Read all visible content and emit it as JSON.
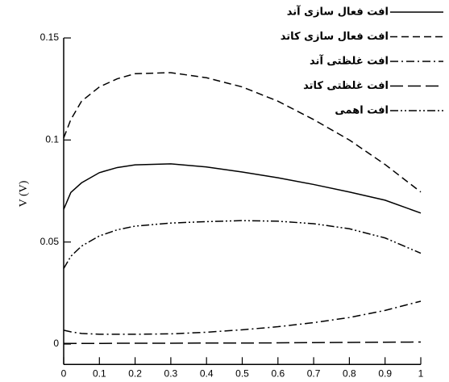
{
  "chart_data": {
    "type": "line",
    "x": [
      0,
      0.02,
      0.05,
      0.1,
      0.15,
      0.2,
      0.3,
      0.4,
      0.5,
      0.6,
      0.7,
      0.8,
      0.9,
      1
    ],
    "xlim": [
      0,
      1
    ],
    "xticks": [
      0,
      0.1,
      0.2,
      0.3,
      0.4,
      0.5,
      0.6,
      0.7,
      0.8,
      0.9,
      1
    ],
    "ylim": [
      -0.01,
      0.15
    ],
    "yticks": [
      0,
      0.05,
      0.1,
      0.15
    ],
    "y_label": "V (V)",
    "legend": "upper right",
    "series": [
      {
        "name": "افت فعال سازی آند",
        "color": "#000000",
        "dash": "solid",
        "values": [
          0.066,
          0.0743,
          0.079,
          0.084,
          0.0865,
          0.0878,
          0.0883,
          0.0868,
          0.0843,
          0.0815,
          0.0782,
          0.0745,
          0.0705,
          0.0642
        ]
      },
      {
        "name": "افت فعال سازی کاتد",
        "color": "#000000",
        "dash": "dashed",
        "values": [
          0.101,
          0.11,
          0.119,
          0.126,
          0.13,
          0.1325,
          0.133,
          0.1305,
          0.126,
          0.119,
          0.11,
          0.1,
          0.088,
          0.0745
        ]
      },
      {
        "name": "افت غلظتی آند",
        "color": "#000000",
        "dash": "dashdot",
        "values": [
          0.0068,
          0.006,
          0.0052,
          0.0048,
          0.0048,
          0.0048,
          0.005,
          0.0058,
          0.007,
          0.0085,
          0.0105,
          0.013,
          0.0165,
          0.021
        ]
      },
      {
        "name": "افت غلظتی کاتد",
        "color": "#000000",
        "dash": "longdash",
        "values": [
          0.0003,
          0.0003,
          0.0003,
          0.0003,
          0.0004,
          0.0004,
          0.0004,
          0.0005,
          0.0005,
          0.0006,
          0.0007,
          0.0008,
          0.0009,
          0.001
        ]
      },
      {
        "name": "افت اهمی",
        "color": "#000000",
        "dash": "dashdotdot",
        "values": [
          0.037,
          0.043,
          0.048,
          0.053,
          0.056,
          0.0578,
          0.0593,
          0.06,
          0.0605,
          0.0602,
          0.059,
          0.0565,
          0.052,
          0.0445
        ]
      }
    ]
  }
}
